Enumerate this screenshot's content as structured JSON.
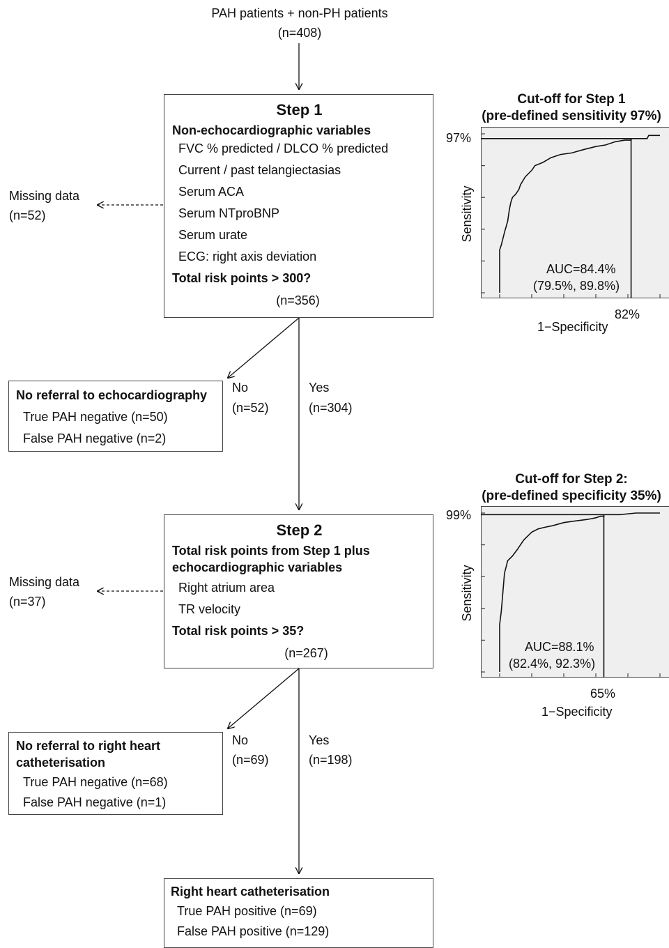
{
  "start": {
    "title": "PAH patients + non-PH patients",
    "n": "(n=408)"
  },
  "step1": {
    "title": "Step 1",
    "heading": "Non-echocardiographic variables",
    "variables": [
      "FVC % predicted / DLCO % predicted",
      "Current / past telangiectasias",
      "Serum ACA",
      "Serum NTproBNP",
      "Serum urate",
      "ECG: right axis deviation"
    ],
    "question": "Total risk points > 300?",
    "n": "(n=356)"
  },
  "missing1": {
    "label": "Missing data",
    "n": "(n=52)"
  },
  "branch1": {
    "no_label": "No",
    "no_n": "(n=52)",
    "yes_label": "Yes",
    "yes_n": "(n=304)"
  },
  "noref1": {
    "title": "No referral to echocardiography",
    "lines": [
      "True PAH negative (n=50)",
      "False PAH negative (n=2)"
    ]
  },
  "step2": {
    "title": "Step 2",
    "heading_line1": "Total risk points from Step 1 plus",
    "heading_line2": "echocardiographic variables",
    "variables": [
      "Right atrium area",
      "TR velocity"
    ],
    "question": "Total risk points > 35?",
    "n": "(n=267)"
  },
  "missing2": {
    "label": "Missing data",
    "n": "(n=37)"
  },
  "branch2": {
    "no_label": "No",
    "no_n": "(n=69)",
    "yes_label": "Yes",
    "yes_n": "(n=198)"
  },
  "noref2": {
    "title_line1": "No referral to right heart",
    "title_line2": "catheterisation",
    "lines": [
      "True PAH negative (n=68)",
      "False PAH negative (n=1)"
    ]
  },
  "rhc": {
    "title": "Right heart catheterisation",
    "lines": [
      "True PAH positive (n=69)",
      "False PAH positive (n=129)"
    ]
  },
  "chart_data": [
    {
      "type": "line",
      "title_line1": "Cut-off for Step 1",
      "title_line2": "(pre-defined sensitivity 97%)",
      "xlabel": "1−Specificity",
      "ylabel": "Sensitivity",
      "cutoff_sensitivity_label": "97%",
      "cutoff_fpr_label": "82%",
      "cutoff_sensitivity": 0.97,
      "cutoff_fpr": 0.82,
      "auc_text": "AUC=84.4%",
      "ci_text": "(79.5%, 89.8%)",
      "xlim": [
        0,
        1
      ],
      "ylim": [
        0,
        1
      ],
      "roc_fpr": [
        0.0,
        0.0,
        0.01,
        0.03,
        0.05,
        0.06,
        0.07,
        0.08,
        0.1,
        0.12,
        0.13,
        0.16,
        0.2,
        0.22,
        0.27,
        0.32,
        0.38,
        0.45,
        0.52,
        0.6,
        0.66,
        0.72,
        0.78,
        0.82,
        0.82,
        0.92,
        0.93,
        1.0
      ],
      "roc_tpr": [
        0.0,
        0.27,
        0.3,
        0.38,
        0.45,
        0.52,
        0.57,
        0.6,
        0.62,
        0.65,
        0.68,
        0.73,
        0.77,
        0.8,
        0.82,
        0.85,
        0.87,
        0.88,
        0.9,
        0.92,
        0.93,
        0.95,
        0.96,
        0.96,
        0.97,
        0.97,
        0.99,
        0.99
      ]
    },
    {
      "type": "line",
      "title_line1": "Cut-off for Step 2:",
      "title_line2": "(pre-defined specificity 35%)",
      "xlabel": "1−Specificity",
      "ylabel": "Sensitivity",
      "cutoff_sensitivity_label": "99%",
      "cutoff_fpr_label": "65%",
      "cutoff_sensitivity": 0.99,
      "cutoff_fpr": 0.65,
      "auc_text": "AUC=88.1%",
      "ci_text": "(82.4%, 92.3%)",
      "xlim": [
        0,
        1
      ],
      "ylim": [
        0,
        1
      ],
      "roc_fpr": [
        0.0,
        0.0,
        0.01,
        0.02,
        0.03,
        0.05,
        0.08,
        0.11,
        0.13,
        0.15,
        0.17,
        0.2,
        0.24,
        0.28,
        0.33,
        0.4,
        0.47,
        0.55,
        0.6,
        0.63,
        0.65,
        0.65,
        0.75,
        0.85,
        1.0
      ],
      "roc_tpr": [
        0.0,
        0.3,
        0.38,
        0.5,
        0.62,
        0.7,
        0.73,
        0.77,
        0.8,
        0.83,
        0.85,
        0.88,
        0.9,
        0.91,
        0.92,
        0.94,
        0.95,
        0.96,
        0.97,
        0.98,
        0.98,
        0.99,
        0.99,
        1.0,
        1.0
      ]
    }
  ]
}
